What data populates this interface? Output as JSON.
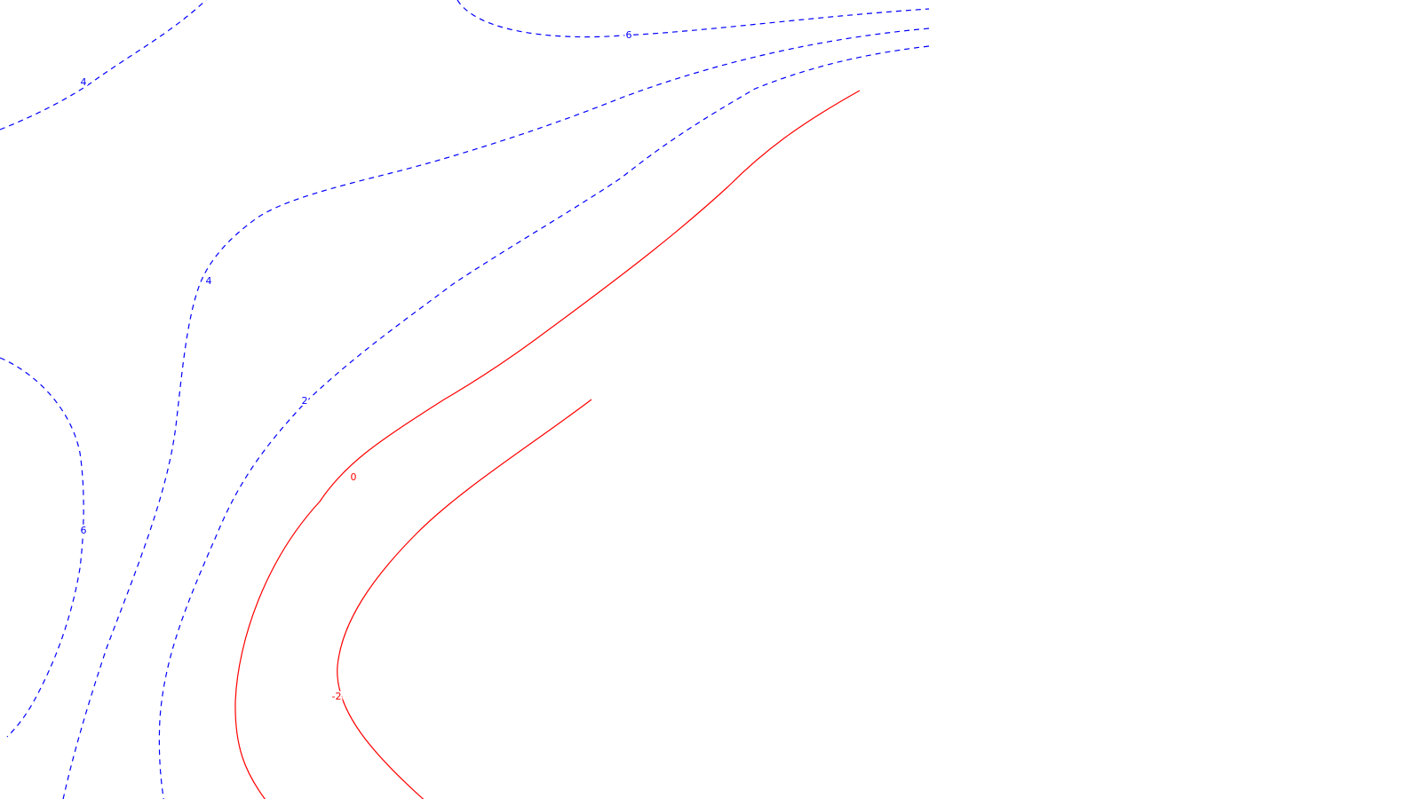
{
  "chart_data": {
    "type": "contour",
    "styles": {
      "negative_color": "#ff0000",
      "positive_color": "#0000ff",
      "negative_line": "solid",
      "positive_line": "dashed"
    },
    "levels": [
      {
        "id": "lvl-neg2",
        "value": -2,
        "label": "-2",
        "sign": "neg"
      },
      {
        "id": "lvl-zero",
        "value": 0,
        "label": "0",
        "sign": "neg"
      },
      {
        "id": "lvl-pos2",
        "value": 2,
        "label": "2",
        "sign": "pos"
      },
      {
        "id": "lvl-pos4-upper",
        "value": 4,
        "label": "4",
        "sign": "pos"
      },
      {
        "id": "lvl-pos4-lower",
        "value": 4,
        "label": "4",
        "sign": "pos"
      },
      {
        "id": "lvl-pos6-top",
        "value": 6,
        "label": "6",
        "sign": "pos"
      },
      {
        "id": "lvl-pos6-left",
        "value": 6,
        "label": "6",
        "sign": "pos"
      }
    ]
  }
}
